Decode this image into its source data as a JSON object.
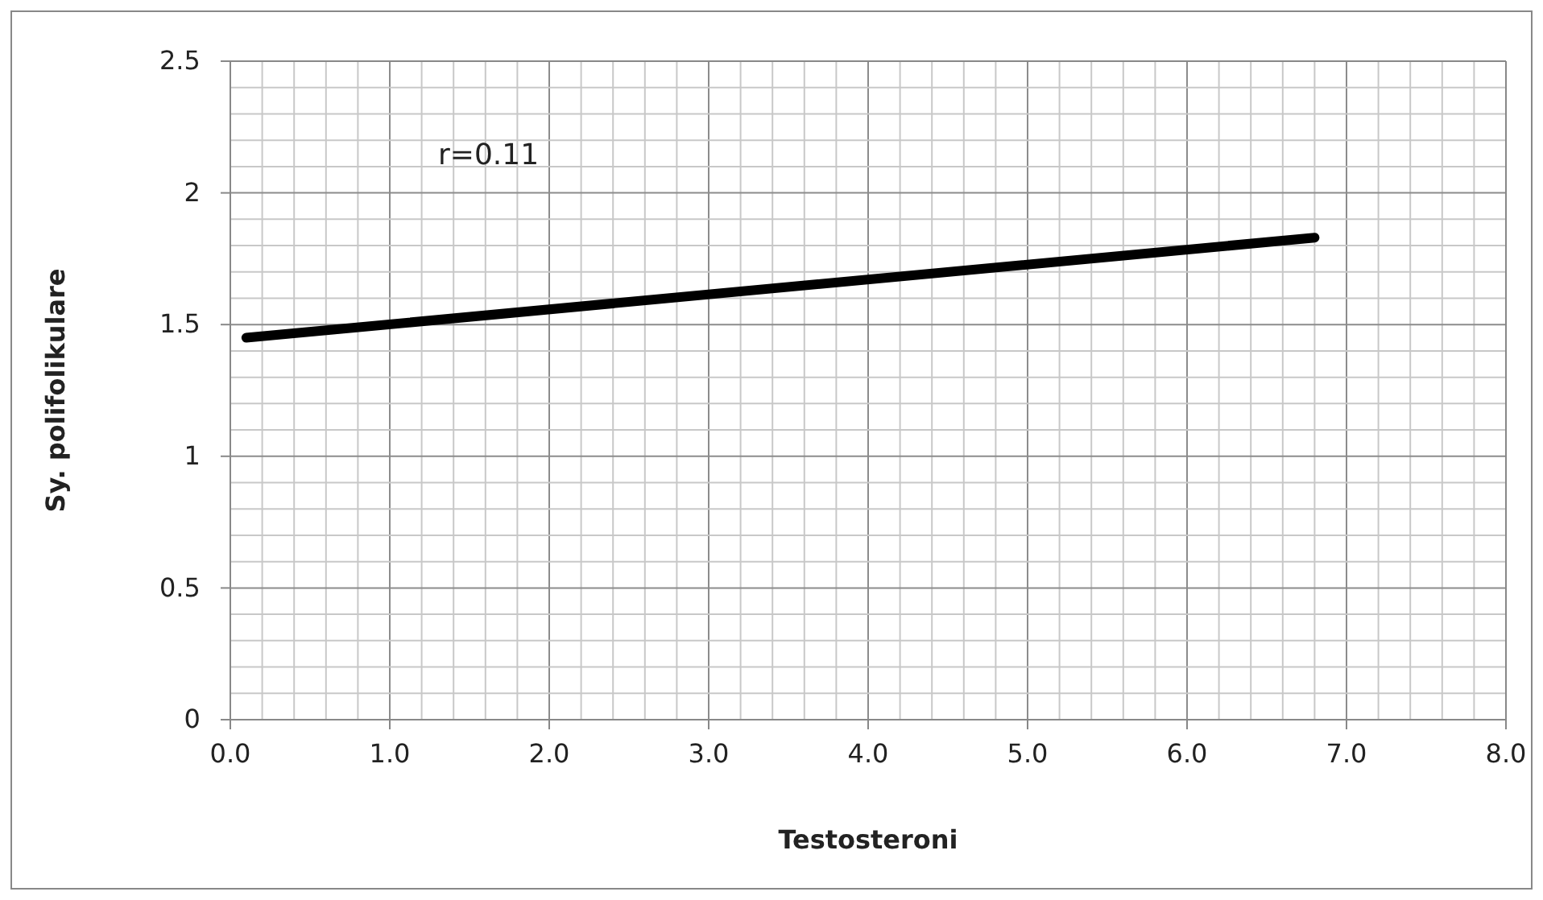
{
  "chart_data": {
    "type": "line",
    "xlabel": "Testosteroni",
    "ylabel": "Sy. polifolikulare",
    "annotations": [
      "r=0.11"
    ],
    "x": [
      0.1,
      6.8
    ],
    "series": [
      {
        "color": "#000000",
        "values": [
          1.45,
          1.83
        ]
      }
    ],
    "xlim": [
      0,
      8
    ],
    "xticks": [
      {
        "value": 0,
        "label": "0.0"
      },
      {
        "value": 0.2,
        "label": null
      },
      {
        "value": 0.4,
        "label": null
      },
      {
        "value": 0.6,
        "label": null
      },
      {
        "value": 0.8,
        "label": null
      },
      {
        "value": 1,
        "label": "1.0"
      },
      {
        "value": 1.2,
        "label": null
      },
      {
        "value": 1.4,
        "label": null
      },
      {
        "value": 1.6,
        "label": null
      },
      {
        "value": 1.8,
        "label": null
      },
      {
        "value": 2,
        "label": "2.0"
      },
      {
        "value": 2.2,
        "label": null
      },
      {
        "value": 2.4,
        "label": null
      },
      {
        "value": 2.6,
        "label": null
      },
      {
        "value": 2.8,
        "label": null
      },
      {
        "value": 3,
        "label": "3.0"
      },
      {
        "value": 3.2,
        "label": null
      },
      {
        "value": 3.4,
        "label": null
      },
      {
        "value": 3.6,
        "label": null
      },
      {
        "value": 3.8,
        "label": null
      },
      {
        "value": 4,
        "label": "4.0"
      },
      {
        "value": 4.2,
        "label": null
      },
      {
        "value": 4.4,
        "label": null
      },
      {
        "value": 4.6,
        "label": null
      },
      {
        "value": 4.8,
        "label": null
      },
      {
        "value": 5,
        "label": "5.0"
      },
      {
        "value": 5.2,
        "label": null
      },
      {
        "value": 5.4,
        "label": null
      },
      {
        "value": 5.6,
        "label": null
      },
      {
        "value": 5.8,
        "label": null
      },
      {
        "value": 6,
        "label": "6.0"
      },
      {
        "value": 6.2,
        "label": null
      },
      {
        "value": 6.4,
        "label": null
      },
      {
        "value": 6.6,
        "label": null
      },
      {
        "value": 6.8,
        "label": null
      },
      {
        "value": 7,
        "label": "7.0"
      },
      {
        "value": 7.2,
        "label": null
      },
      {
        "value": 7.4,
        "label": null
      },
      {
        "value": 7.6,
        "label": null
      },
      {
        "value": 7.8,
        "label": null
      },
      {
        "value": 8,
        "label": "8.0"
      }
    ],
    "ylim": [
      0,
      2.5
    ],
    "yticks": [
      0,
      {
        "value": 0.1,
        "label": null
      },
      {
        "value": 0.2,
        "label": null
      },
      {
        "value": 0.3,
        "label": null
      },
      {
        "value": 0.4,
        "label": null
      },
      0.5,
      {
        "value": 0.6,
        "label": null
      },
      {
        "value": 0.7,
        "label": null
      },
      {
        "value": 0.8,
        "label": null
      },
      {
        "value": 0.9,
        "label": null
      },
      1,
      {
        "value": 1.1,
        "label": null
      },
      {
        "value": 1.2,
        "label": null
      },
      {
        "value": 1.3,
        "label": null
      },
      {
        "value": 1.4,
        "label": null
      },
      1.5,
      {
        "value": 1.6,
        "label": null
      },
      {
        "value": 1.7,
        "label": null
      },
      {
        "value": 1.8,
        "label": null
      },
      {
        "value": 1.9,
        "label": null
      },
      2,
      {
        "value": 2.1,
        "label": null
      },
      {
        "value": 2.2,
        "label": null
      },
      {
        "value": 2.3,
        "label": null
      },
      {
        "value": 2.4,
        "label": null
      },
      2.5
    ],
    "grid": true,
    "marker": "none",
    "line_style": "solid"
  }
}
